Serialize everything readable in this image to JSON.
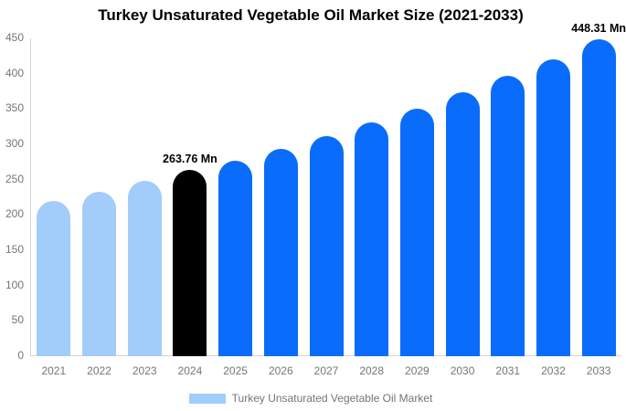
{
  "chart_data": {
    "type": "bar",
    "title": "Turkey Unsaturated Vegetable Oil Market Size (2021-2033)",
    "categories": [
      "2021",
      "2022",
      "2023",
      "2024",
      "2025",
      "2026",
      "2027",
      "2028",
      "2029",
      "2030",
      "2031",
      "2032",
      "2033"
    ],
    "values": [
      220,
      233,
      248,
      263.76,
      277,
      294,
      312,
      331,
      351,
      374,
      397,
      420,
      448.31
    ],
    "unit": "Mn",
    "ylim": [
      0,
      450
    ],
    "yticks": [
      0,
      50,
      100,
      150,
      200,
      250,
      300,
      350,
      400,
      450
    ],
    "grid": false,
    "bar_colors": [
      "#a2ccfa",
      "#a2ccfa",
      "#a2ccfa",
      "#000000",
      "#0a6cfa",
      "#0a6cfa",
      "#0a6cfa",
      "#0a6cfa",
      "#0a6cfa",
      "#0a6cfa",
      "#0a6cfa",
      "#0a6cfa",
      "#0a6cfa"
    ],
    "annotations": [
      {
        "category": "2024",
        "text": "263.76 Mn"
      },
      {
        "category": "2033",
        "text": "448.31 Mn"
      }
    ],
    "legend": {
      "label": "Turkey Unsaturated Vegetable Oil Market",
      "position": "bottom",
      "swatch_color": "#a2ccfa"
    },
    "colors": {
      "bar_past": "#a2ccfa",
      "bar_current": "#000000",
      "bar_forecast": "#0a6cfa",
      "axis_line": "#d4d4d4",
      "axis_text": "#757575",
      "title_text": "#000000",
      "background": "#ffffff"
    }
  }
}
